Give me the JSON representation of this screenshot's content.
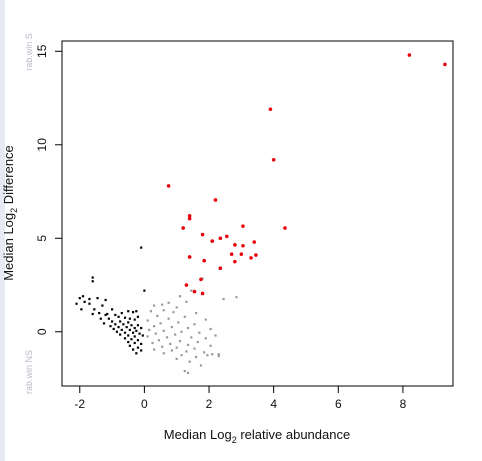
{
  "chart_data": {
    "type": "scatter",
    "title": "",
    "xlabel": {
      "prefix": "Median  Log",
      "subscript": "2",
      "suffix": "  relative abundance"
    },
    "ylabel": {
      "prefix": "Median  Log",
      "subscript": "2",
      "suffix": "  Difference"
    },
    "side_labels": {
      "top": "rab.win S",
      "bottom": "rab.win NS"
    },
    "xlim": [
      -2.55,
      9.55
    ],
    "ylim": [
      -2.9,
      15.55
    ],
    "x_ticks": [
      -2,
      0,
      2,
      4,
      6,
      8
    ],
    "y_ticks": [
      0,
      5,
      10,
      15
    ],
    "grid": false,
    "series": [
      {
        "color": "#e8000b",
        "marker": "circle",
        "points": [
          [
            8.2,
            14.8
          ],
          [
            9.3,
            14.3
          ],
          [
            3.9,
            11.9
          ],
          [
            4.0,
            9.2
          ],
          [
            0.75,
            7.8
          ],
          [
            2.2,
            7.05
          ],
          [
            1.4,
            6.2
          ],
          [
            1.4,
            6.05
          ],
          [
            3.05,
            5.65
          ],
          [
            1.2,
            5.55
          ],
          [
            4.35,
            5.55
          ],
          [
            1.8,
            5.2
          ],
          [
            2.55,
            5.1
          ],
          [
            2.35,
            5.0
          ],
          [
            2.1,
            4.85
          ],
          [
            3.4,
            4.8
          ],
          [
            2.8,
            4.65
          ],
          [
            3.05,
            4.6
          ],
          [
            2.7,
            4.15
          ],
          [
            3.0,
            4.15
          ],
          [
            3.45,
            4.1
          ],
          [
            3.3,
            3.95
          ],
          [
            1.4,
            4.0
          ],
          [
            1.85,
            3.8
          ],
          [
            2.8,
            3.75
          ],
          [
            2.35,
            3.4
          ],
          [
            1.75,
            2.8
          ],
          [
            1.3,
            2.5
          ],
          [
            1.55,
            2.15
          ],
          [
            1.8,
            2.05
          ]
        ]
      },
      {
        "color": "#000000",
        "marker": "square-small",
        "points": [
          [
            -0.1,
            4.5
          ],
          [
            0.0,
            2.2
          ],
          [
            -1.6,
            2.9
          ],
          [
            -1.6,
            2.7
          ],
          [
            -1.9,
            1.9
          ],
          [
            -2.0,
            1.8
          ],
          [
            -1.7,
            1.75
          ],
          [
            -1.45,
            1.8
          ],
          [
            -1.2,
            1.7
          ],
          [
            -1.85,
            1.6
          ],
          [
            -2.1,
            1.5
          ],
          [
            -1.7,
            1.5
          ],
          [
            -1.3,
            1.4
          ],
          [
            -1.55,
            1.2
          ],
          [
            -1.95,
            1.2
          ],
          [
            -1.0,
            1.2
          ],
          [
            -1.4,
            1.0
          ],
          [
            -1.6,
            0.95
          ],
          [
            -0.5,
            1.1
          ],
          [
            -0.35,
            1.05
          ],
          [
            -0.25,
            1.1
          ],
          [
            -1.2,
            0.9
          ],
          [
            -0.9,
            0.9
          ],
          [
            -1.35,
            0.7
          ],
          [
            -0.8,
            0.8
          ],
          [
            -0.6,
            0.75
          ],
          [
            -1.1,
            0.7
          ],
          [
            -0.45,
            0.7
          ],
          [
            -0.3,
            0.65
          ],
          [
            -1.0,
            0.55
          ],
          [
            -0.75,
            0.55
          ],
          [
            -0.5,
            0.5
          ],
          [
            -1.25,
            0.45
          ],
          [
            -0.9,
            0.4
          ],
          [
            -0.65,
            0.4
          ],
          [
            -0.4,
            0.35
          ],
          [
            -0.2,
            0.35
          ],
          [
            -1.05,
            0.3
          ],
          [
            -0.8,
            0.25
          ],
          [
            -0.55,
            0.25
          ],
          [
            -0.3,
            0.2
          ],
          [
            -0.1,
            0.2
          ],
          [
            -0.95,
            0.15
          ],
          [
            -0.7,
            0.1
          ],
          [
            -0.45,
            0.1
          ],
          [
            -0.25,
            0.05
          ],
          [
            -0.85,
            0.0
          ],
          [
            -0.6,
            -0.05
          ],
          [
            -0.35,
            -0.05
          ],
          [
            -0.15,
            -0.1
          ],
          [
            -0.75,
            -0.15
          ],
          [
            -0.5,
            -0.2
          ],
          [
            -0.3,
            -0.25
          ],
          [
            -0.05,
            -0.2
          ],
          [
            -0.6,
            -0.35
          ],
          [
            -0.4,
            -0.4
          ],
          [
            -0.2,
            -0.45
          ],
          [
            -0.5,
            -0.55
          ],
          [
            -0.3,
            -0.6
          ],
          [
            -0.1,
            -0.65
          ],
          [
            -0.45,
            -0.75
          ],
          [
            -0.2,
            -0.85
          ],
          [
            -0.35,
            -0.95
          ],
          [
            -0.1,
            -1.0
          ],
          [
            -0.25,
            -1.15
          ],
          [
            -1.15,
            0.95
          ],
          [
            -0.7,
            1.0
          ],
          [
            -0.2,
            0.8
          ]
        ]
      },
      {
        "color": "#9a9a9a",
        "marker": "square-small",
        "points": [
          [
            1.8,
            2.85
          ],
          [
            2.45,
            1.75
          ],
          [
            2.85,
            1.85
          ],
          [
            1.45,
            2.2
          ],
          [
            1.1,
            1.9
          ],
          [
            0.75,
            1.55
          ],
          [
            0.55,
            1.45
          ],
          [
            0.3,
            1.4
          ],
          [
            1.3,
            1.6
          ],
          [
            1.0,
            1.3
          ],
          [
            0.6,
            1.15
          ],
          [
            0.2,
            1.1
          ],
          [
            0.9,
            1.05
          ],
          [
            1.6,
            1.0
          ],
          [
            0.4,
            0.85
          ],
          [
            1.25,
            0.8
          ],
          [
            0.75,
            0.7
          ],
          [
            1.9,
            0.65
          ],
          [
            0.1,
            0.6
          ],
          [
            1.05,
            0.5
          ],
          [
            0.5,
            0.45
          ],
          [
            1.55,
            0.4
          ],
          [
            0.3,
            0.3
          ],
          [
            0.85,
            0.25
          ],
          [
            1.35,
            0.2
          ],
          [
            2.05,
            0.15
          ],
          [
            0.15,
            0.1
          ],
          [
            0.6,
            0.05
          ],
          [
            1.15,
            0.0
          ],
          [
            1.7,
            -0.05
          ],
          [
            0.35,
            -0.1
          ],
          [
            0.95,
            -0.15
          ],
          [
            2.2,
            -0.2
          ],
          [
            0.1,
            -0.25
          ],
          [
            0.7,
            -0.3
          ],
          [
            1.45,
            -0.3
          ],
          [
            1.9,
            -0.35
          ],
          [
            0.45,
            -0.45
          ],
          [
            1.1,
            -0.5
          ],
          [
            1.65,
            -0.55
          ],
          [
            0.25,
            -0.6
          ],
          [
            0.8,
            -0.65
          ],
          [
            1.35,
            -0.7
          ],
          [
            2.05,
            -0.75
          ],
          [
            0.55,
            -0.8
          ],
          [
            1.0,
            -0.85
          ],
          [
            1.55,
            -0.9
          ],
          [
            0.3,
            -0.95
          ],
          [
            0.85,
            -1.0
          ],
          [
            1.3,
            -1.05
          ],
          [
            1.85,
            -1.1
          ],
          [
            2.3,
            -1.2
          ],
          [
            0.6,
            -1.15
          ],
          [
            1.15,
            -1.25
          ],
          [
            1.6,
            -1.35
          ],
          [
            1.0,
            -1.45
          ],
          [
            1.4,
            -1.6
          ],
          [
            1.75,
            -1.8
          ],
          [
            1.25,
            -2.1
          ],
          [
            1.35,
            -2.2
          ],
          [
            2.1,
            -1.2
          ],
          [
            2.3,
            -1.3
          ],
          [
            1.95,
            -1.25
          ]
        ]
      }
    ]
  }
}
